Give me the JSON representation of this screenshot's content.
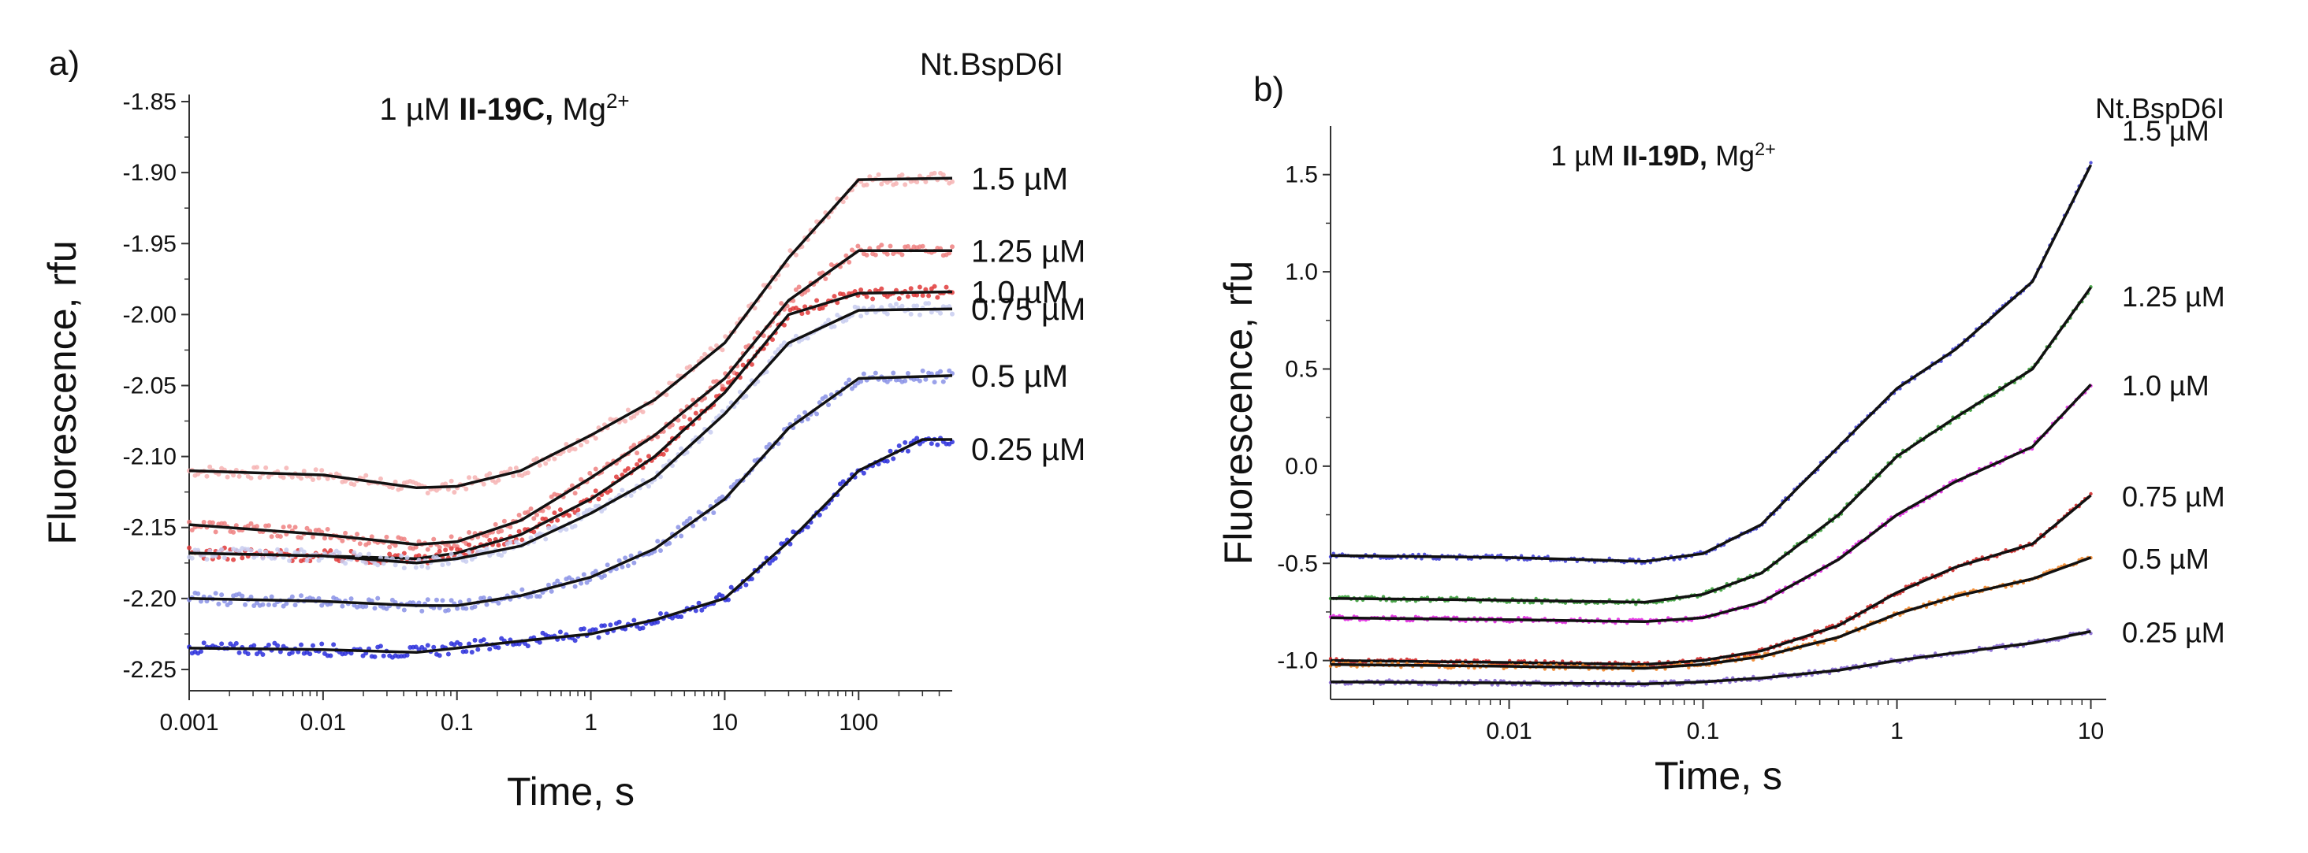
{
  "chart_data": [
    {
      "type": "line",
      "panel_label": "a)",
      "title": {
        "prefix": "1 µM ",
        "bold": "II-19C,",
        "suffix": " Mg",
        "sup": "2+"
      },
      "xlabel": "Time, s",
      "ylabel": "Fluorescence, rfu",
      "xscale": "log",
      "xlim": [
        0.001,
        500
      ],
      "ylim": [
        -2.265,
        -1.845
      ],
      "xticks": [
        0.001,
        0.01,
        0.1,
        1,
        10,
        100
      ],
      "xtick_labels": [
        "0.001",
        "0.01",
        "0.1",
        "1",
        "10",
        "100"
      ],
      "yticks": [
        -1.85,
        -1.9,
        -1.95,
        -2.0,
        -2.05,
        -2.1,
        -2.15,
        -2.2,
        -2.25
      ],
      "ytick_labels": [
        "-1.85",
        "-1.90",
        "-1.95",
        "-2.00",
        "-2.05",
        "-2.10",
        "-2.15",
        "-2.20",
        "-2.25"
      ],
      "legend_title": "Nt.BspD6I",
      "series": [
        {
          "name": "1.5 µM",
          "color": "#f6b3b3",
          "points": [
            [
              0.001,
              -2.11
            ],
            [
              0.01,
              -2.113
            ],
            [
              0.05,
              -2.122
            ],
            [
              0.1,
              -2.121
            ],
            [
              0.3,
              -2.11
            ],
            [
              1,
              -2.085
            ],
            [
              3,
              -2.06
            ],
            [
              10,
              -2.02
            ],
            [
              30,
              -1.96
            ],
            [
              100,
              -1.905
            ],
            [
              500,
              -1.904
            ]
          ]
        },
        {
          "name": "1.25 µM",
          "color": "#ee8080",
          "points": [
            [
              0.001,
              -2.148
            ],
            [
              0.01,
              -2.155
            ],
            [
              0.05,
              -2.162
            ],
            [
              0.1,
              -2.16
            ],
            [
              0.3,
              -2.145
            ],
            [
              1,
              -2.115
            ],
            [
              3,
              -2.085
            ],
            [
              10,
              -2.045
            ],
            [
              30,
              -1.99
            ],
            [
              100,
              -1.955
            ],
            [
              500,
              -1.955
            ]
          ]
        },
        {
          "name": "1.0 µM",
          "color": "#e03a3a",
          "points": [
            [
              0.001,
              -2.168
            ],
            [
              0.01,
              -2.17
            ],
            [
              0.05,
              -2.172
            ],
            [
              0.1,
              -2.168
            ],
            [
              0.3,
              -2.155
            ],
            [
              1,
              -2.13
            ],
            [
              3,
              -2.1
            ],
            [
              10,
              -2.055
            ],
            [
              30,
              -2.0
            ],
            [
              100,
              -1.985
            ],
            [
              500,
              -1.984
            ]
          ]
        },
        {
          "name": "0.75 µM",
          "color": "#c8ccf0",
          "points": [
            [
              0.001,
              -2.168
            ],
            [
              0.01,
              -2.17
            ],
            [
              0.05,
              -2.175
            ],
            [
              0.1,
              -2.172
            ],
            [
              0.3,
              -2.163
            ],
            [
              1,
              -2.14
            ],
            [
              3,
              -2.115
            ],
            [
              10,
              -2.07
            ],
            [
              30,
              -2.02
            ],
            [
              100,
              -1.997
            ],
            [
              500,
              -1.996
            ]
          ]
        },
        {
          "name": "0.5 µM",
          "color": "#8a92e6",
          "points": [
            [
              0.001,
              -2.2
            ],
            [
              0.01,
              -2.202
            ],
            [
              0.05,
              -2.205
            ],
            [
              0.1,
              -2.205
            ],
            [
              0.3,
              -2.198
            ],
            [
              1,
              -2.185
            ],
            [
              3,
              -2.165
            ],
            [
              10,
              -2.13
            ],
            [
              30,
              -2.08
            ],
            [
              100,
              -2.045
            ],
            [
              500,
              -2.043
            ]
          ]
        },
        {
          "name": "0.25 µM",
          "color": "#2b2fdc",
          "points": [
            [
              0.001,
              -2.235
            ],
            [
              0.01,
              -2.236
            ],
            [
              0.05,
              -2.238
            ],
            [
              0.1,
              -2.235
            ],
            [
              0.3,
              -2.23
            ],
            [
              1,
              -2.225
            ],
            [
              3,
              -2.215
            ],
            [
              10,
              -2.2
            ],
            [
              30,
              -2.16
            ],
            [
              100,
              -2.11
            ],
            [
              300,
              -2.088
            ],
            [
              500,
              -2.088
            ]
          ]
        }
      ]
    },
    {
      "type": "line",
      "panel_label": "b)",
      "title": {
        "prefix": "1 µM ",
        "bold": "II-19D,",
        "suffix": " Mg",
        "sup": "2+"
      },
      "xlabel": "Time, s",
      "ylabel": "Fluorescence, rfu",
      "xscale": "log",
      "xlim": [
        0.0012,
        12
      ],
      "ylim": [
        -1.2,
        1.75
      ],
      "xticks": [
        0.01,
        0.1,
        1,
        10
      ],
      "xtick_labels": [
        "0.01",
        "0.1",
        "1",
        "10"
      ],
      "yticks": [
        1.5,
        1.0,
        0.5,
        0.0,
        -0.5,
        -1.0
      ],
      "ytick_labels": [
        "1.5",
        "1.0",
        "0.5",
        "0.0",
        "-0.5",
        "-1.0"
      ],
      "legend_title": "Nt.BspD6I",
      "series": [
        {
          "name": "1.5 µM",
          "color": "#3a3ad6",
          "points": [
            [
              0.0012,
              -0.46
            ],
            [
              0.01,
              -0.47
            ],
            [
              0.05,
              -0.49
            ],
            [
              0.1,
              -0.45
            ],
            [
              0.2,
              -0.3
            ],
            [
              0.5,
              0.1
            ],
            [
              1,
              0.4
            ],
            [
              2,
              0.6
            ],
            [
              5,
              0.95
            ],
            [
              10,
              1.55
            ]
          ]
        },
        {
          "name": "1.25 µM",
          "color": "#2f9a2f",
          "points": [
            [
              0.0012,
              -0.68
            ],
            [
              0.01,
              -0.69
            ],
            [
              0.05,
              -0.7
            ],
            [
              0.1,
              -0.66
            ],
            [
              0.2,
              -0.55
            ],
            [
              0.5,
              -0.25
            ],
            [
              1,
              0.05
            ],
            [
              2,
              0.25
            ],
            [
              5,
              0.5
            ],
            [
              10,
              0.92
            ]
          ]
        },
        {
          "name": "1.0 µM",
          "color": "#e020e0",
          "points": [
            [
              0.0012,
              -0.78
            ],
            [
              0.01,
              -0.79
            ],
            [
              0.05,
              -0.8
            ],
            [
              0.1,
              -0.78
            ],
            [
              0.2,
              -0.7
            ],
            [
              0.5,
              -0.48
            ],
            [
              1,
              -0.25
            ],
            [
              2,
              -0.08
            ],
            [
              5,
              0.1
            ],
            [
              10,
              0.42
            ]
          ]
        },
        {
          "name": "0.75 µM",
          "color": "#d02020",
          "points": [
            [
              0.0012,
              -1.0
            ],
            [
              0.01,
              -1.01
            ],
            [
              0.05,
              -1.02
            ],
            [
              0.1,
              -1.0
            ],
            [
              0.2,
              -0.95
            ],
            [
              0.5,
              -0.82
            ],
            [
              1,
              -0.65
            ],
            [
              2,
              -0.52
            ],
            [
              5,
              -0.4
            ],
            [
              10,
              -0.15
            ]
          ]
        },
        {
          "name": "0.5 µM",
          "color": "#f08020",
          "points": [
            [
              0.0012,
              -1.02
            ],
            [
              0.01,
              -1.03
            ],
            [
              0.05,
              -1.04
            ],
            [
              0.1,
              -1.02
            ],
            [
              0.2,
              -0.98
            ],
            [
              0.5,
              -0.88
            ],
            [
              1,
              -0.76
            ],
            [
              2,
              -0.67
            ],
            [
              5,
              -0.58
            ],
            [
              10,
              -0.47
            ]
          ]
        },
        {
          "name": "0.25 µM",
          "color": "#8060d0",
          "points": [
            [
              0.0012,
              -1.11
            ],
            [
              0.01,
              -1.115
            ],
            [
              0.05,
              -1.12
            ],
            [
              0.1,
              -1.11
            ],
            [
              0.2,
              -1.09
            ],
            [
              0.5,
              -1.05
            ],
            [
              1,
              -1.0
            ],
            [
              2,
              -0.96
            ],
            [
              5,
              -0.91
            ],
            [
              10,
              -0.85
            ]
          ]
        }
      ]
    }
  ]
}
